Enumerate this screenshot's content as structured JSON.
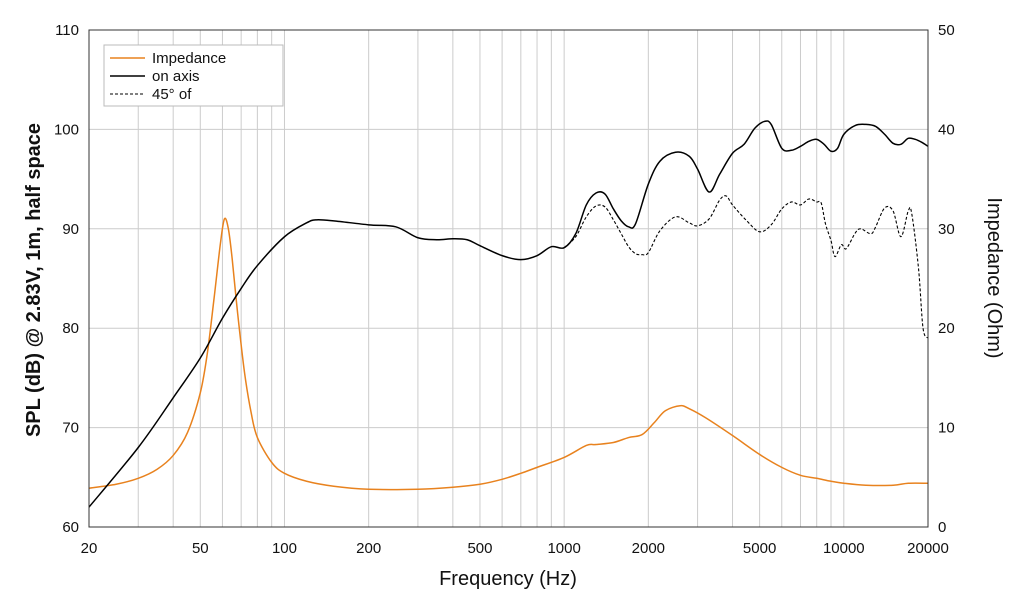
{
  "chart_data": {
    "type": "line",
    "title": "",
    "xlabel": "Frequency (Hz)",
    "ylabel_left": "SPL (dB) @ 2.83V, 1m, half space",
    "ylabel_right": "Impedance (Ohm)",
    "x_scale": "log",
    "xlim": [
      20,
      20000
    ],
    "ylim_left": [
      60,
      110
    ],
    "ylim_right": [
      0,
      50
    ],
    "x_ticks": [
      20,
      50,
      100,
      200,
      500,
      1000,
      2000,
      5000,
      10000,
      20000
    ],
    "x_tick_labels": [
      "20",
      "50",
      "100",
      "200",
      "500",
      "1000",
      "2000",
      "5000",
      "10000",
      "20000"
    ],
    "y_left_ticks": [
      60,
      70,
      80,
      90,
      100,
      110
    ],
    "y_left_tick_labels": [
      "60",
      "70",
      "80",
      "90",
      "100",
      "110"
    ],
    "y_right_ticks": [
      0,
      10,
      20,
      30,
      40,
      50
    ],
    "y_right_tick_labels": [
      "0",
      "10",
      "20",
      "30",
      "40",
      "50"
    ],
    "grid": true,
    "legend_position": "top-left",
    "legend": [
      {
        "label": "Impedance",
        "color": "#e8821e",
        "style": "solid"
      },
      {
        "label": "on axis",
        "color": "#000000",
        "style": "solid"
      },
      {
        "label": "45° of",
        "color": "#000000",
        "style": "dashed"
      }
    ],
    "series": [
      {
        "name": "Impedance",
        "axis": "right",
        "color": "#e8821e",
        "style": "solid",
        "points": [
          [
            20,
            3.9
          ],
          [
            25,
            4.3
          ],
          [
            30,
            4.9
          ],
          [
            35,
            5.8
          ],
          [
            40,
            7.2
          ],
          [
            45,
            9.5
          ],
          [
            50,
            13.5
          ],
          [
            53,
            17.5
          ],
          [
            56,
            23
          ],
          [
            59,
            28.5
          ],
          [
            61,
            31
          ],
          [
            63,
            30
          ],
          [
            65,
            27
          ],
          [
            68,
            21.5
          ],
          [
            72,
            15.5
          ],
          [
            76,
            11.5
          ],
          [
            80,
            9
          ],
          [
            90,
            6.5
          ],
          [
            100,
            5.4
          ],
          [
            120,
            4.6
          ],
          [
            150,
            4.1
          ],
          [
            200,
            3.8
          ],
          [
            300,
            3.8
          ],
          [
            400,
            4.0
          ],
          [
            500,
            4.3
          ],
          [
            600,
            4.8
          ],
          [
            700,
            5.4
          ],
          [
            800,
            6.0
          ],
          [
            1000,
            7.0
          ],
          [
            1200,
            8.2
          ],
          [
            1300,
            8.3
          ],
          [
            1500,
            8.5
          ],
          [
            1700,
            9.0
          ],
          [
            1900,
            9.3
          ],
          [
            2100,
            10.5
          ],
          [
            2300,
            11.7
          ],
          [
            2600,
            12.2
          ],
          [
            2800,
            11.9
          ],
          [
            3200,
            11.0
          ],
          [
            4000,
            9.2
          ],
          [
            5000,
            7.3
          ],
          [
            6000,
            6.0
          ],
          [
            7000,
            5.2
          ],
          [
            8000,
            4.9
          ],
          [
            9000,
            4.6
          ],
          [
            10000,
            4.4
          ],
          [
            12000,
            4.2
          ],
          [
            15000,
            4.2
          ],
          [
            17000,
            4.4
          ],
          [
            20000,
            4.4
          ]
        ]
      },
      {
        "name": "on axis",
        "axis": "left",
        "color": "#000000",
        "style": "solid",
        "points": [
          [
            20,
            62
          ],
          [
            30,
            68
          ],
          [
            40,
            73
          ],
          [
            50,
            77
          ],
          [
            60,
            81
          ],
          [
            70,
            84
          ],
          [
            80,
            86.3
          ],
          [
            100,
            89.2
          ],
          [
            120,
            90.6
          ],
          [
            130,
            90.9
          ],
          [
            150,
            90.8
          ],
          [
            200,
            90.4
          ],
          [
            250,
            90.2
          ],
          [
            300,
            89.1
          ],
          [
            350,
            88.9
          ],
          [
            400,
            89
          ],
          [
            450,
            88.9
          ],
          [
            500,
            88.3
          ],
          [
            600,
            87.3
          ],
          [
            700,
            86.9
          ],
          [
            800,
            87.3
          ],
          [
            900,
            88.2
          ],
          [
            1000,
            88.1
          ],
          [
            1100,
            89.5
          ],
          [
            1200,
            92.4
          ],
          [
            1300,
            93.6
          ],
          [
            1400,
            93.5
          ],
          [
            1500,
            92
          ],
          [
            1600,
            90.8
          ],
          [
            1700,
            90.2
          ],
          [
            1800,
            90.5
          ],
          [
            2000,
            94.5
          ],
          [
            2200,
            96.8
          ],
          [
            2500,
            97.7
          ],
          [
            2800,
            97.3
          ],
          [
            3000,
            96
          ],
          [
            3300,
            93.7
          ],
          [
            3600,
            95.5
          ],
          [
            4000,
            97.6
          ],
          [
            4400,
            98.5
          ],
          [
            4800,
            100.1
          ],
          [
            5200,
            100.8
          ],
          [
            5500,
            100.5
          ],
          [
            6000,
            98.1
          ],
          [
            6500,
            97.9
          ],
          [
            7000,
            98.3
          ],
          [
            7500,
            98.8
          ],
          [
            8000,
            99
          ],
          [
            8500,
            98.5
          ],
          [
            9000,
            97.8
          ],
          [
            9500,
            98.1
          ],
          [
            10000,
            99.5
          ],
          [
            11000,
            100.4
          ],
          [
            12000,
            100.5
          ],
          [
            13000,
            100.3
          ],
          [
            14000,
            99.5
          ],
          [
            15000,
            98.6
          ],
          [
            16000,
            98.5
          ],
          [
            17000,
            99.1
          ],
          [
            18000,
            99
          ],
          [
            19000,
            98.7
          ],
          [
            20000,
            98.3
          ]
        ]
      },
      {
        "name": "45° of",
        "axis": "left",
        "color": "#000000",
        "style": "dashed",
        "points": [
          [
            1000,
            88.1
          ],
          [
            1100,
            89.2
          ],
          [
            1200,
            91.2
          ],
          [
            1300,
            92.3
          ],
          [
            1400,
            92.2
          ],
          [
            1500,
            90.9
          ],
          [
            1600,
            89.5
          ],
          [
            1700,
            88.2
          ],
          [
            1800,
            87.5
          ],
          [
            1900,
            87.4
          ],
          [
            2000,
            87.6
          ],
          [
            2200,
            89.8
          ],
          [
            2500,
            91.2
          ],
          [
            2800,
            90.6
          ],
          [
            3000,
            90.3
          ],
          [
            3300,
            91
          ],
          [
            3600,
            92.9
          ],
          [
            3800,
            93.3
          ],
          [
            4000,
            92.4
          ],
          [
            4500,
            90.8
          ],
          [
            5000,
            89.7
          ],
          [
            5500,
            90.4
          ],
          [
            6000,
            92
          ],
          [
            6500,
            92.7
          ],
          [
            7000,
            92.4
          ],
          [
            7500,
            93
          ],
          [
            8000,
            92.7
          ],
          [
            8300,
            92.6
          ],
          [
            8600,
            90.5
          ],
          [
            9000,
            88.8
          ],
          [
            9300,
            87.2
          ],
          [
            9800,
            88.4
          ],
          [
            10200,
            88
          ],
          [
            11000,
            89.6
          ],
          [
            11500,
            90
          ],
          [
            12500,
            89.5
          ],
          [
            13000,
            90.2
          ],
          [
            14000,
            92.1
          ],
          [
            15000,
            91.8
          ],
          [
            16000,
            89.2
          ],
          [
            17000,
            91.8
          ],
          [
            17500,
            91.5
          ],
          [
            18500,
            86
          ],
          [
            19200,
            80
          ],
          [
            20000,
            79
          ]
        ]
      }
    ]
  },
  "colors": {
    "impedance": "#e8821e",
    "grid": "#c8c8c8",
    "axis": "#333333"
  }
}
